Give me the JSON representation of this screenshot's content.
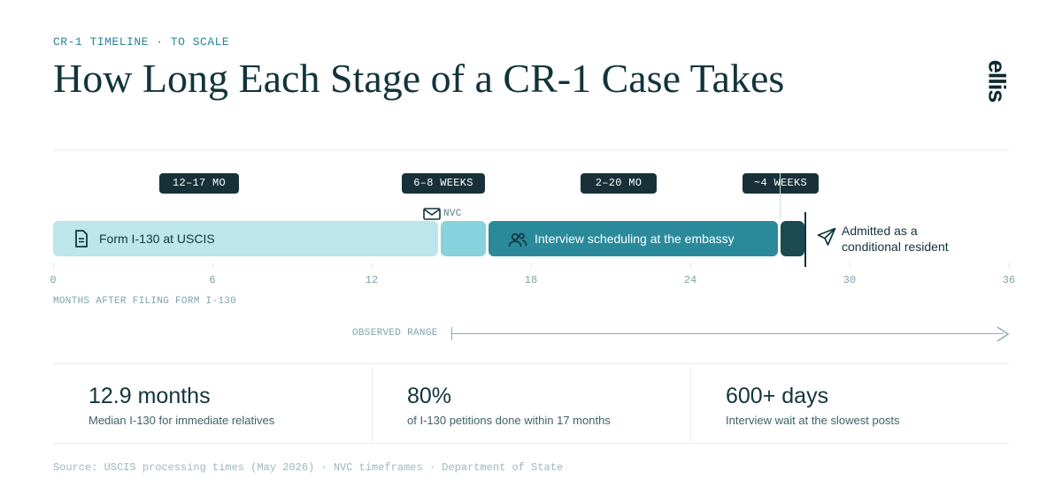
{
  "eyebrow": "CR-1 TIMELINE · TO SCALE",
  "title": "How Long Each Stage of a CR-1 Case Takes",
  "logo": "ellis",
  "chart_data": {
    "type": "timeline",
    "axis": {
      "min": 0,
      "max": 36,
      "ticks": [
        0,
        6,
        12,
        18,
        24,
        30,
        36
      ],
      "label": "MONTHS AFTER FILING FORM I-130"
    },
    "stages": [
      {
        "name": "Form I-130 at USCIS",
        "start": 0,
        "end": 14.5,
        "badge": "12–17 MO",
        "badge_center": 5.5,
        "icon": "document-icon",
        "color": "#bce5ec",
        "text_color": "#14343a"
      },
      {
        "name": "NVC",
        "start": 14.6,
        "end": 16.3,
        "badge": "6–8 WEEKS",
        "badge_center": 14.7,
        "icon": "envelope-icon",
        "color": "#86d2dd",
        "text_color": "#14343a"
      },
      {
        "name": "Interview scheduling at the embassy",
        "start": 16.4,
        "end": 27.3,
        "badge": "2–20 MO",
        "badge_center": 21.3,
        "icon": "people-icon",
        "color": "#2a8a9b",
        "text_color": "#ffffff"
      },
      {
        "name": "",
        "start": 27.4,
        "end": 28.3,
        "badge": "~4 WEEKS",
        "badge_center": 27.4,
        "icon": "",
        "color": "#1c4a52",
        "text_color": "#ffffff"
      }
    ],
    "milestone": {
      "at": 28.3,
      "label_line1": "Admitted as a",
      "label_line2": "conditional resident",
      "icon": "paper-plane-icon"
    },
    "observed_range": {
      "label": "OBSERVED RANGE",
      "start": 15,
      "end": 36
    }
  },
  "stats": [
    {
      "value": "12.9 months",
      "label": "Median I-130 for immediate relatives"
    },
    {
      "value": "80%",
      "label": "of I-130 petitions done within 17 months"
    },
    {
      "value": "600+ days",
      "label": "Interview wait at the slowest posts"
    }
  ],
  "source": "Source: USCIS processing times (May 2026) · NVC timeframes · Department of State"
}
